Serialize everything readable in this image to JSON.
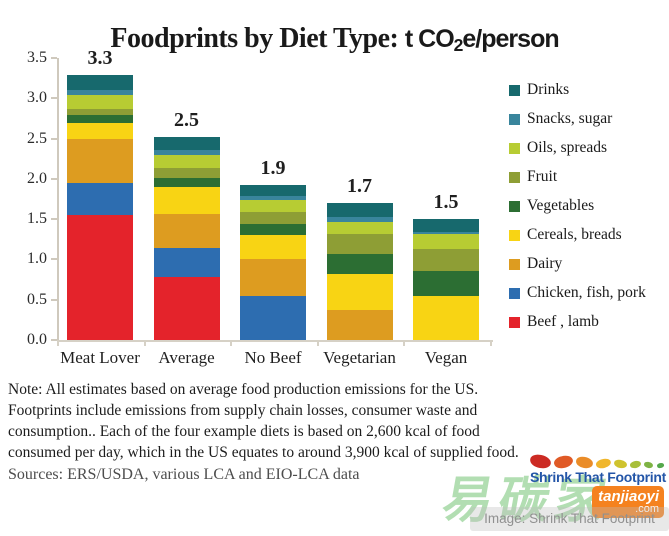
{
  "title": {
    "main": "Foodprints by Diet Type: ",
    "unit_pre": "t CO",
    "unit_sub": "2",
    "unit_post": "e/person"
  },
  "chart_data": {
    "type": "bar",
    "subtype": "stacked",
    "title": "Foodprints by Diet Type: t CO2e/person",
    "xlabel": "",
    "ylabel": "t CO2e/person",
    "ylim": [
      0,
      3.5
    ],
    "yticks": [
      "3.5",
      "3.0",
      "2.5",
      "2.0",
      "1.5",
      "1.0",
      "0.5",
      "0.0"
    ],
    "grid": false,
    "legend_position": "right",
    "categories": [
      "Meat Lover",
      "Average",
      "No Beef",
      "Vegetarian",
      "Vegan"
    ],
    "totals_labels": [
      "3.3",
      "2.5",
      "1.9",
      "1.7",
      "1.5"
    ],
    "series": [
      {
        "name": "Beef , lamb",
        "color": "#e4232b",
        "values": [
          1.55,
          0.78,
          0.0,
          0.0,
          0.0
        ]
      },
      {
        "name": "Chicken, fish, pork",
        "color": "#2d6db0",
        "values": [
          0.4,
          0.36,
          0.55,
          0.0,
          0.0
        ]
      },
      {
        "name": "Dairy",
        "color": "#dd9c20",
        "values": [
          0.55,
          0.43,
          0.45,
          0.37,
          0.0
        ]
      },
      {
        "name": "Cereals, breads",
        "color": "#f8d414",
        "values": [
          0.19,
          0.33,
          0.3,
          0.45,
          0.55
        ]
      },
      {
        "name": "Vegetables",
        "color": "#2c6e33",
        "values": [
          0.1,
          0.11,
          0.14,
          0.25,
          0.31
        ]
      },
      {
        "name": "Fruit",
        "color": "#8e9e35",
        "values": [
          0.08,
          0.12,
          0.15,
          0.25,
          0.27
        ]
      },
      {
        "name": "Oils, spreads",
        "color": "#b7cc33",
        "values": [
          0.17,
          0.17,
          0.15,
          0.15,
          0.18
        ]
      },
      {
        "name": "Snacks, sugar",
        "color": "#39859c",
        "values": [
          0.06,
          0.06,
          0.05,
          0.06,
          0.03
        ]
      },
      {
        "name": "Drinks",
        "color": "#17696d",
        "values": [
          0.19,
          0.16,
          0.14,
          0.17,
          0.16
        ]
      }
    ],
    "legend": [
      {
        "label": "Drinks",
        "color": "#17696d"
      },
      {
        "label": "Snacks, sugar",
        "color": "#39859c"
      },
      {
        "label": "Oils, spreads",
        "color": "#b7cc33"
      },
      {
        "label": "Fruit",
        "color": "#8e9e35"
      },
      {
        "label": "Vegetables",
        "color": "#2c6e33"
      },
      {
        "label": "Cereals, breads",
        "color": "#f8d414"
      },
      {
        "label": "Dairy",
        "color": "#dd9c20"
      },
      {
        "label": "Chicken, fish, pork",
        "color": "#2d6db0"
      },
      {
        "label": "Beef , lamb",
        "color": "#e4232b"
      }
    ],
    "axis_color": "#cfc9bd"
  },
  "note_lines": [
    "Note: All estimates based on average food production emissions for the US.",
    "Footprints include emissions from supply chain losses, consumer waste and",
    "consumption..  Each of the four example diets is based on 2,600 kcal of food",
    "consumed per day, which in the US equates to around 3,900 kcal of supplied food."
  ],
  "footer": {
    "sources": "Sources:  ERS/USDA, various LCA and EIO-LCA data",
    "logo_text": "Shrink That Footprint",
    "logo_color": "#2456a8",
    "footprint_colors": [
      "#cc2b24",
      "#e05a26",
      "#ea8c28",
      "#f0b62c",
      "#cfc32e",
      "#a8bf3a",
      "#7fb344",
      "#55a84c"
    ],
    "watermark_cn": "易碳家",
    "watermark_latin": "tanjiaoyi",
    "watermark_com": ".com",
    "image_caption": "Image: Shrink That Footprint"
  }
}
